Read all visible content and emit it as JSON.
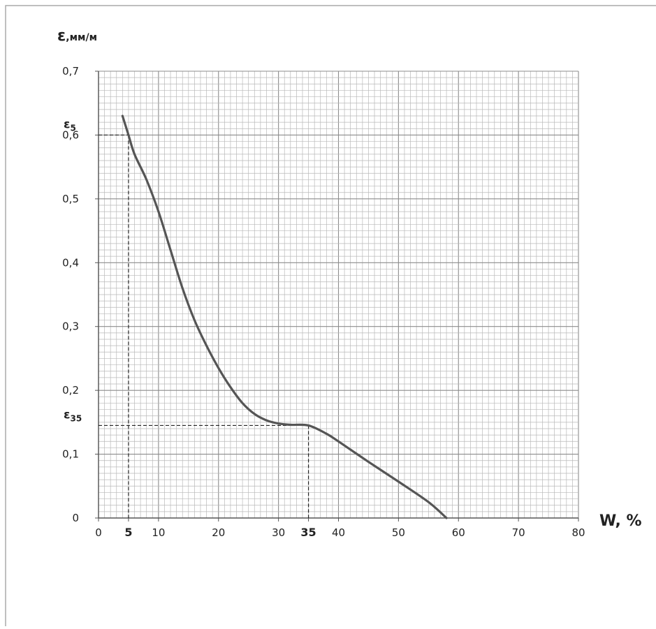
{
  "chart_data": {
    "type": "line",
    "y_axis_title": {
      "symbol": "ε",
      "unit": ",мм/м"
    },
    "x_axis_title": "W, %",
    "xlim": [
      0,
      80
    ],
    "ylim": [
      0,
      0.7
    ],
    "x_ticks": [
      {
        "value": 0,
        "label": "0"
      },
      {
        "value": 5,
        "label": "5",
        "bold": true
      },
      {
        "value": 10,
        "label": "10"
      },
      {
        "value": 20,
        "label": "20"
      },
      {
        "value": 30,
        "label": "30"
      },
      {
        "value": 35,
        "label": "35",
        "bold": true
      },
      {
        "value": 40,
        "label": "40"
      },
      {
        "value": 50,
        "label": "50"
      },
      {
        "value": 60,
        "label": "60"
      },
      {
        "value": 70,
        "label": "70"
      },
      {
        "value": 80,
        "label": "80"
      }
    ],
    "y_ticks": [
      {
        "value": 0,
        "label": "0"
      },
      {
        "value": 0.1,
        "label": "0,1"
      },
      {
        "value": 0.2,
        "label": "0,2"
      },
      {
        "value": 0.3,
        "label": "0,3"
      },
      {
        "value": 0.4,
        "label": "0,4"
      },
      {
        "value": 0.5,
        "label": "0,5"
      },
      {
        "value": 0.6,
        "label": "0,6"
      },
      {
        "value": 0.7,
        "label": "0,7"
      }
    ],
    "grid": true,
    "grid_minor_step": {
      "x": 1,
      "y": 0.01
    },
    "series": [
      {
        "color": "#555555",
        "points": [
          [
            4,
            0.63
          ],
          [
            5,
            0.6
          ],
          [
            6,
            0.57
          ],
          [
            8,
            0.53
          ],
          [
            10,
            0.48
          ],
          [
            12,
            0.42
          ],
          [
            14,
            0.36
          ],
          [
            16,
            0.31
          ],
          [
            18,
            0.27
          ],
          [
            20,
            0.235
          ],
          [
            22,
            0.205
          ],
          [
            24,
            0.18
          ],
          [
            26,
            0.163
          ],
          [
            28,
            0.153
          ],
          [
            30,
            0.148
          ],
          [
            32,
            0.146
          ],
          [
            35,
            0.145
          ],
          [
            38,
            0.132
          ],
          [
            40,
            0.12
          ],
          [
            45,
            0.088
          ],
          [
            50,
            0.057
          ],
          [
            55,
            0.025
          ],
          [
            58,
            0.0
          ]
        ]
      }
    ],
    "annotations": [
      {
        "x": 5,
        "y": 0.6,
        "label_main": "ε",
        "label_sub": "5"
      },
      {
        "x": 35,
        "y": 0.145,
        "label_main": "ε",
        "label_sub": "35"
      }
    ]
  }
}
